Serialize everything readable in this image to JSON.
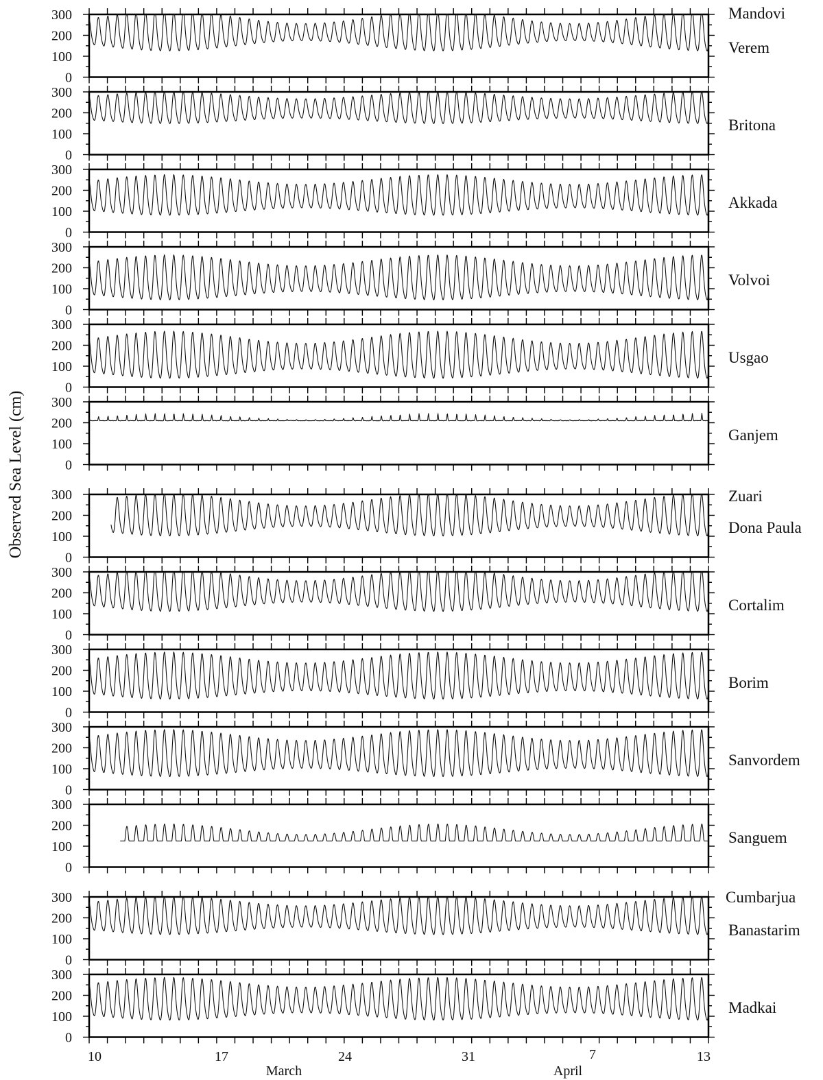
{
  "chart_data": {
    "type": "line",
    "ylabel": "Observed Sea Level (cm)",
    "y_ticks": [
      "0",
      "100",
      "200",
      "300"
    ],
    "ylim": [
      0,
      300
    ],
    "x_day_ticks": [
      "10",
      "17",
      "24",
      "31",
      "7",
      "13"
    ],
    "x_month_labels": [
      "March",
      "April"
    ],
    "x_range": [
      "March 10",
      "April 13"
    ],
    "groups": [
      {
        "name": "Mandovi",
        "stations": [
          "Verem",
          "Britona",
          "Akkada",
          "Volvoi",
          "Usgao",
          "Ganjem"
        ]
      },
      {
        "name": "Zuari",
        "stations": [
          "Dona Paula",
          "Cortalim",
          "Borim",
          "Sanvordem",
          "Sanguem"
        ]
      },
      {
        "name": "Cumbarjua",
        "stations": [
          "Banastarim",
          "Madkai"
        ]
      }
    ],
    "series": [
      {
        "name": "Verem",
        "mean": 210,
        "range_neap": 80,
        "range_spring": 190,
        "kind": "tide"
      },
      {
        "name": "Britona",
        "mean": 215,
        "range_neap": 90,
        "range_spring": 150,
        "kind": "tide"
      },
      {
        "name": "Akkada",
        "mean": 165,
        "range_neap": 110,
        "range_spring": 190,
        "kind": "tide"
      },
      {
        "name": "Volvoi",
        "mean": 140,
        "range_neap": 120,
        "range_spring": 210,
        "kind": "tide"
      },
      {
        "name": "Usgao",
        "mean": 140,
        "range_neap": 120,
        "range_spring": 220,
        "kind": "tide"
      },
      {
        "name": "Ganjem",
        "mean": 210,
        "range_neap": 10,
        "range_spring": 70,
        "kind": "spike"
      },
      {
        "name": "Dona Paula",
        "mean": 190,
        "range_neap": 95,
        "range_spring": 200,
        "kind": "tide",
        "gap_start_days": 1.2
      },
      {
        "name": "Cortalim",
        "mean": 200,
        "range_neap": 100,
        "range_spring": 200,
        "kind": "tide"
      },
      {
        "name": "Borim",
        "mean": 160,
        "range_neap": 130,
        "range_spring": 220,
        "kind": "tide"
      },
      {
        "name": "Sanvordem",
        "mean": 160,
        "range_neap": 130,
        "range_spring": 220,
        "kind": "tide"
      },
      {
        "name": "Sanguem",
        "mean": 150,
        "range_neap": 50,
        "range_spring": 130,
        "kind": "floor",
        "gap_start_days": 1.7
      },
      {
        "name": "Banastarim",
        "mean": 200,
        "range_neap": 100,
        "range_spring": 180,
        "kind": "tide"
      },
      {
        "name": "Madkai",
        "mean": 170,
        "range_neap": 120,
        "range_spring": 200,
        "kind": "tide"
      }
    ]
  }
}
